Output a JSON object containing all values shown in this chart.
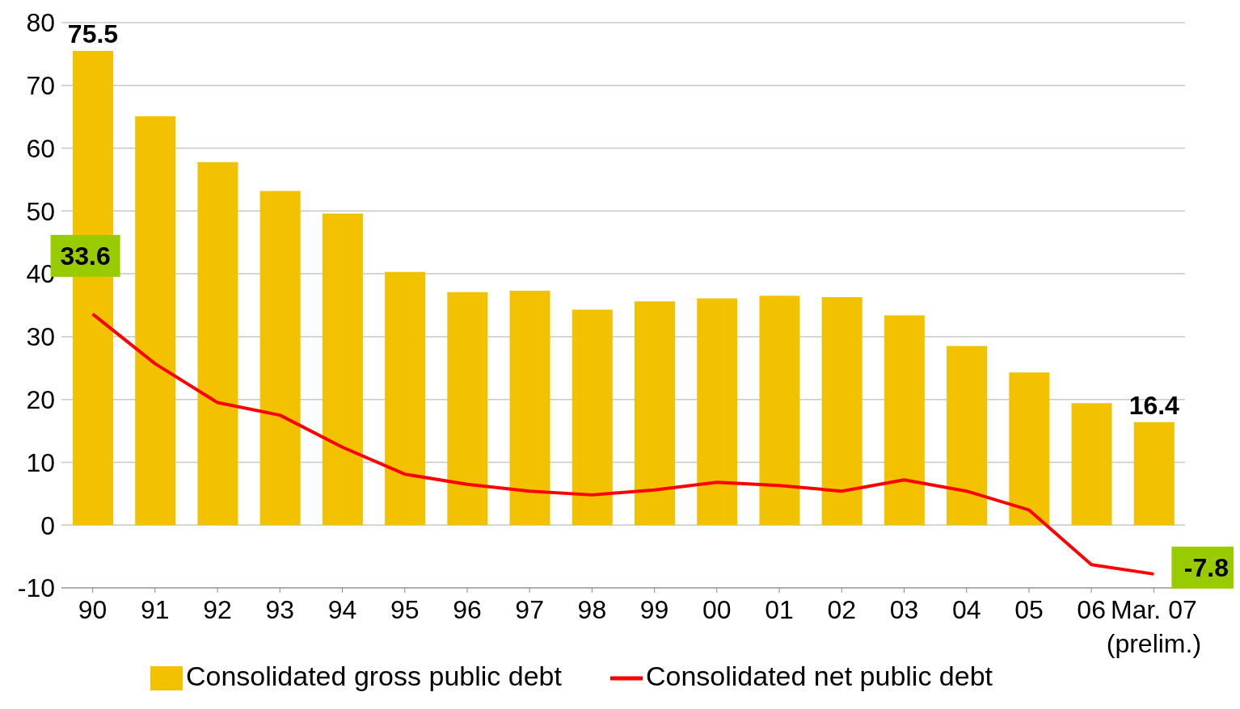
{
  "chart_data": {
    "type": "bar",
    "categories": [
      "90",
      "91",
      "92",
      "93",
      "94",
      "95",
      "96",
      "97",
      "98",
      "99",
      "00",
      "01",
      "02",
      "03",
      "04",
      "05",
      "06",
      "Mar. 07\n(prelim.)"
    ],
    "series": [
      {
        "name": "Consolidated gross public debt",
        "color": "#f2c200",
        "values": [
          75.5,
          65.1,
          57.8,
          53.2,
          49.6,
          40.3,
          37.1,
          37.3,
          34.3,
          35.6,
          36.1,
          36.5,
          36.3,
          33.4,
          28.5,
          24.3,
          19.4,
          16.4
        ],
        "value_labels": [
          "75.5",
          null,
          null,
          null,
          null,
          null,
          null,
          null,
          null,
          null,
          null,
          null,
          null,
          null,
          null,
          null,
          null,
          "16.4"
        ]
      },
      {
        "name": "Consolidated net public debt",
        "type": "line",
        "color": "#ff0000",
        "values": [
          33.6,
          25.7,
          19.5,
          17.5,
          12.4,
          8.1,
          6.5,
          5.4,
          4.8,
          5.6,
          6.8,
          6.3,
          5.4,
          7.2,
          5.4,
          2.4,
          -6.3,
          -7.8
        ],
        "value_labels": [
          "33.6",
          null,
          null,
          null,
          null,
          null,
          null,
          null,
          null,
          null,
          null,
          null,
          null,
          null,
          null,
          null,
          null,
          "-7.8"
        ]
      }
    ],
    "ylim": [
      -10,
      80
    ],
    "yticks": [
      -10,
      0,
      10,
      20,
      30,
      40,
      50,
      60,
      70,
      80
    ],
    "grid": "y",
    "legend": "bottom",
    "marker": "none",
    "line_style": "solid"
  }
}
